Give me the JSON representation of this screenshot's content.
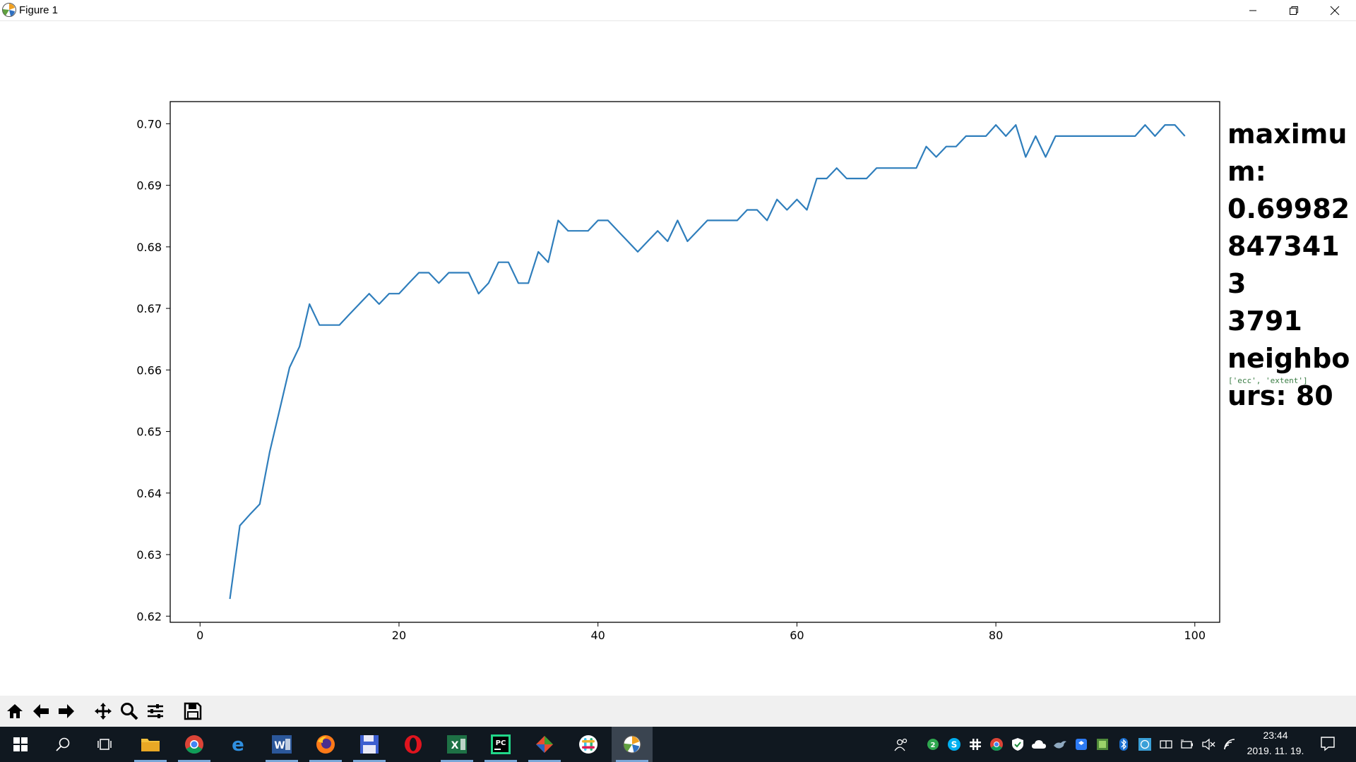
{
  "window": {
    "title": "Figure 1"
  },
  "annotation": {
    "text": "maximum: 0.699828473413 3791 neighbours:  80",
    "lines": [
      "maximu",
      "m:",
      "0.69982",
      "8473413",
      "3791",
      "neighbo",
      "urs:  80"
    ],
    "small": "['ecc', 'extent']"
  },
  "chart_data": {
    "type": "line",
    "color": "#2f7ebc",
    "xlim": [
      -3,
      102.5
    ],
    "ylim": [
      0.619,
      0.7036
    ],
    "xticks": [
      0,
      20,
      40,
      60,
      80,
      100
    ],
    "yticks": [
      0.62,
      0.63,
      0.64,
      0.65,
      0.66,
      0.67,
      0.68,
      0.69,
      0.7
    ],
    "ytick_labels": [
      "0.62",
      "0.63",
      "0.64",
      "0.65",
      "0.66",
      "0.67",
      "0.68",
      "0.69",
      "0.70"
    ],
    "title": "",
    "xlabel": "",
    "ylabel": "",
    "grid": false,
    "series": [
      {
        "x": [
          3,
          4,
          5,
          6,
          7,
          8,
          9,
          10,
          11,
          12,
          13,
          14,
          15,
          16,
          17,
          18,
          19,
          20,
          21,
          22,
          23,
          24,
          25,
          26,
          27,
          28,
          29,
          30,
          31,
          32,
          33,
          34,
          35,
          36,
          37,
          38,
          39,
          40,
          41,
          42,
          43,
          44,
          45,
          46,
          47,
          48,
          49,
          50,
          51,
          52,
          53,
          54,
          55,
          56,
          57,
          58,
          59,
          60,
          61,
          62,
          63,
          64,
          65,
          66,
          67,
          68,
          69,
          70,
          71,
          72,
          73,
          74,
          75,
          76,
          77,
          78,
          79,
          80,
          81,
          82,
          83,
          84,
          85,
          86,
          87,
          88,
          89,
          90,
          91,
          92,
          93,
          94,
          95,
          96,
          97,
          98,
          99
        ],
        "y": [
          0.6228,
          0.6347,
          0.6365,
          0.6382,
          0.6467,
          0.6535,
          0.6604,
          0.6638,
          0.6707,
          0.6673,
          0.6673,
          0.6673,
          0.669,
          0.6707,
          0.6724,
          0.6707,
          0.6724,
          0.6724,
          0.6741,
          0.6758,
          0.6758,
          0.6741,
          0.6758,
          0.6758,
          0.6758,
          0.6724,
          0.6741,
          0.6775,
          0.6775,
          0.6741,
          0.6741,
          0.6792,
          0.6775,
          0.6843,
          0.6826,
          0.6826,
          0.6826,
          0.6843,
          0.6843,
          0.6826,
          0.6809,
          0.6792,
          0.6809,
          0.6826,
          0.6809,
          0.6843,
          0.6809,
          0.6826,
          0.6843,
          0.6843,
          0.6843,
          0.6843,
          0.686,
          0.686,
          0.6843,
          0.6877,
          0.686,
          0.6877,
          0.686,
          0.6911,
          0.6911,
          0.6928,
          0.6911,
          0.6911,
          0.6911,
          0.6928,
          0.6928,
          0.6928,
          0.6928,
          0.6928,
          0.6963,
          0.6946,
          0.6963,
          0.6963,
          0.698,
          0.698,
          0.698,
          0.6998,
          0.698,
          0.6998,
          0.6946,
          0.698,
          0.6946,
          0.698,
          0.698,
          0.698,
          0.698,
          0.698,
          0.698,
          0.698,
          0.698,
          0.698,
          0.6998,
          0.698,
          0.6998,
          0.6998,
          0.698
        ]
      }
    ]
  },
  "toolbar": {
    "buttons": [
      "home-icon",
      "back-icon",
      "forward-icon",
      "pan-icon",
      "zoom-icon",
      "configure-subplots-icon",
      "save-icon"
    ]
  },
  "taskbar": {
    "apps": [
      "start",
      "search",
      "task-view",
      "file-explorer",
      "chrome",
      "edge",
      "word",
      "firefox",
      "save-app",
      "opera",
      "excel",
      "pycharm",
      "git",
      "slack",
      "figure"
    ],
    "badge_count": "2",
    "time": "23:44",
    "date": "2019. 11. 19."
  }
}
